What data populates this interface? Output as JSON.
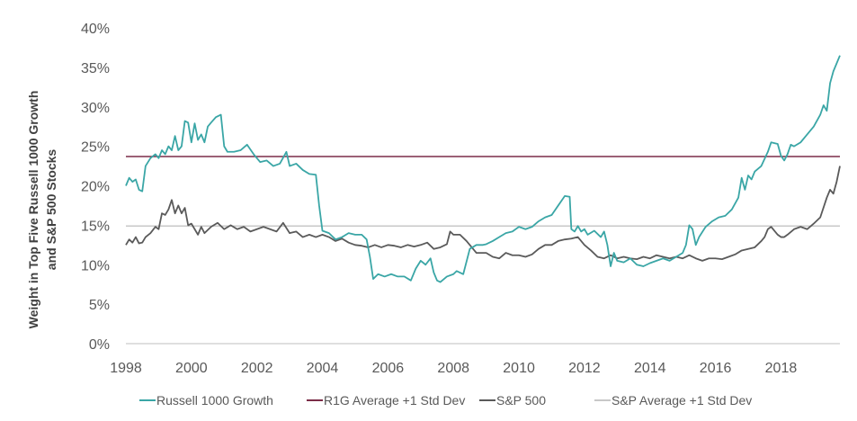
{
  "chart_data": {
    "type": "line",
    "title": "",
    "xlabel": "",
    "ylabel_lines": [
      "Weight in Top Five Russell 1000 Growth",
      "and S&P 500 Stocks"
    ],
    "xlim": [
      1998,
      2019.8
    ],
    "ylim": [
      0,
      40
    ],
    "x_ticks": [
      1998,
      2000,
      2002,
      2004,
      2006,
      2008,
      2010,
      2012,
      2014,
      2016,
      2018
    ],
    "x_tick_labels": [
      "1998",
      "2000",
      "2002",
      "2004",
      "2006",
      "2008",
      "2010",
      "2012",
      "2014",
      "2016",
      "2018"
    ],
    "y_ticks": [
      0,
      5,
      10,
      15,
      20,
      25,
      30,
      35,
      40
    ],
    "y_tick_labels": [
      "0%",
      "5%",
      "10%",
      "15%",
      "20%",
      "25%",
      "30%",
      "35%",
      "40%"
    ],
    "grid": false,
    "legend_position": "bottom",
    "series": [
      {
        "name": "Russell 1000 Growth",
        "color": "#3aa6a6",
        "points": [
          [
            1998.0,
            20.0
          ],
          [
            1998.1,
            21.0
          ],
          [
            1998.2,
            20.5
          ],
          [
            1998.3,
            20.8
          ],
          [
            1998.4,
            19.5
          ],
          [
            1998.5,
            19.3
          ],
          [
            1998.6,
            22.5
          ],
          [
            1998.75,
            23.5
          ],
          [
            1998.9,
            24.0
          ],
          [
            1999.0,
            23.5
          ],
          [
            1999.1,
            24.5
          ],
          [
            1999.2,
            24.0
          ],
          [
            1999.3,
            25.0
          ],
          [
            1999.4,
            24.5
          ],
          [
            1999.5,
            26.3
          ],
          [
            1999.6,
            24.5
          ],
          [
            1999.7,
            25.0
          ],
          [
            1999.8,
            28.2
          ],
          [
            1999.9,
            28.0
          ],
          [
            2000.0,
            25.5
          ],
          [
            2000.1,
            27.9
          ],
          [
            2000.2,
            25.8
          ],
          [
            2000.3,
            26.5
          ],
          [
            2000.4,
            25.5
          ],
          [
            2000.5,
            27.5
          ],
          [
            2000.6,
            28.0
          ],
          [
            2000.75,
            28.7
          ],
          [
            2000.9,
            29.0
          ],
          [
            2001.0,
            25.0
          ],
          [
            2001.1,
            24.3
          ],
          [
            2001.3,
            24.3
          ],
          [
            2001.5,
            24.5
          ],
          [
            2001.7,
            25.2
          ],
          [
            2001.9,
            24.0
          ],
          [
            2002.0,
            23.5
          ],
          [
            2002.1,
            23.0
          ],
          [
            2002.3,
            23.2
          ],
          [
            2002.5,
            22.5
          ],
          [
            2002.7,
            22.8
          ],
          [
            2002.9,
            24.3
          ],
          [
            2003.0,
            22.5
          ],
          [
            2003.2,
            22.8
          ],
          [
            2003.4,
            22.0
          ],
          [
            2003.6,
            21.5
          ],
          [
            2003.8,
            21.4
          ],
          [
            2003.9,
            17.5
          ],
          [
            2004.0,
            14.3
          ],
          [
            2004.2,
            14.0
          ],
          [
            2004.4,
            13.2
          ],
          [
            2004.6,
            13.5
          ],
          [
            2004.8,
            14.0
          ],
          [
            2005.0,
            13.8
          ],
          [
            2005.2,
            13.8
          ],
          [
            2005.35,
            13.2
          ],
          [
            2005.45,
            11.0
          ],
          [
            2005.55,
            8.2
          ],
          [
            2005.7,
            8.8
          ],
          [
            2005.9,
            8.5
          ],
          [
            2006.1,
            8.8
          ],
          [
            2006.3,
            8.5
          ],
          [
            2006.5,
            8.5
          ],
          [
            2006.7,
            8.0
          ],
          [
            2006.85,
            9.5
          ],
          [
            2007.0,
            10.5
          ],
          [
            2007.15,
            10.0
          ],
          [
            2007.3,
            10.8
          ],
          [
            2007.4,
            9.0
          ],
          [
            2007.5,
            8.0
          ],
          [
            2007.6,
            7.8
          ],
          [
            2007.8,
            8.5
          ],
          [
            2008.0,
            8.8
          ],
          [
            2008.1,
            9.2
          ],
          [
            2008.3,
            8.8
          ],
          [
            2008.5,
            12.0
          ],
          [
            2008.7,
            12.5
          ],
          [
            2008.9,
            12.5
          ],
          [
            2009.0,
            12.6
          ],
          [
            2009.2,
            13.0
          ],
          [
            2009.4,
            13.5
          ],
          [
            2009.6,
            14.0
          ],
          [
            2009.8,
            14.2
          ],
          [
            2010.0,
            14.8
          ],
          [
            2010.2,
            14.5
          ],
          [
            2010.4,
            14.8
          ],
          [
            2010.6,
            15.5
          ],
          [
            2010.8,
            16.0
          ],
          [
            2011.0,
            16.3
          ],
          [
            2011.2,
            17.5
          ],
          [
            2011.4,
            18.7
          ],
          [
            2011.55,
            18.6
          ],
          [
            2011.6,
            14.5
          ],
          [
            2011.7,
            14.2
          ],
          [
            2011.8,
            14.9
          ],
          [
            2011.9,
            14.2
          ],
          [
            2012.0,
            14.5
          ],
          [
            2012.1,
            13.8
          ],
          [
            2012.3,
            14.3
          ],
          [
            2012.5,
            13.5
          ],
          [
            2012.6,
            14.2
          ],
          [
            2012.7,
            12.5
          ],
          [
            2012.8,
            9.8
          ],
          [
            2012.9,
            11.5
          ],
          [
            2013.0,
            10.5
          ],
          [
            2013.2,
            10.3
          ],
          [
            2013.4,
            10.8
          ],
          [
            2013.6,
            10.0
          ],
          [
            2013.8,
            9.8
          ],
          [
            2014.0,
            10.2
          ],
          [
            2014.2,
            10.5
          ],
          [
            2014.4,
            10.8
          ],
          [
            2014.6,
            10.5
          ],
          [
            2014.8,
            11.0
          ],
          [
            2015.0,
            11.5
          ],
          [
            2015.1,
            12.5
          ],
          [
            2015.2,
            15.0
          ],
          [
            2015.3,
            14.5
          ],
          [
            2015.4,
            12.5
          ],
          [
            2015.5,
            13.5
          ],
          [
            2015.7,
            14.8
          ],
          [
            2015.9,
            15.5
          ],
          [
            2016.1,
            16.0
          ],
          [
            2016.3,
            16.2
          ],
          [
            2016.5,
            17.0
          ],
          [
            2016.7,
            18.5
          ],
          [
            2016.8,
            21.0
          ],
          [
            2016.9,
            19.5
          ],
          [
            2017.0,
            21.3
          ],
          [
            2017.1,
            20.8
          ],
          [
            2017.2,
            21.8
          ],
          [
            2017.4,
            22.5
          ],
          [
            2017.6,
            24.3
          ],
          [
            2017.7,
            25.5
          ],
          [
            2017.9,
            25.3
          ],
          [
            2018.0,
            23.8
          ],
          [
            2018.1,
            23.2
          ],
          [
            2018.2,
            24.0
          ],
          [
            2018.3,
            25.2
          ],
          [
            2018.4,
            25.0
          ],
          [
            2018.6,
            25.5
          ],
          [
            2018.8,
            26.5
          ],
          [
            2019.0,
            27.5
          ],
          [
            2019.2,
            29.0
          ],
          [
            2019.3,
            30.2
          ],
          [
            2019.4,
            29.5
          ],
          [
            2019.5,
            33.0
          ],
          [
            2019.6,
            34.5
          ],
          [
            2019.7,
            35.5
          ],
          [
            2019.8,
            36.5
          ]
        ]
      },
      {
        "name": "R1G Average +1 Std Dev",
        "color": "#7b2d48",
        "points": [
          [
            1998.0,
            23.7
          ],
          [
            2019.8,
            23.7
          ]
        ]
      },
      {
        "name": "S&P 500",
        "color": "#5a5a5a",
        "points": [
          [
            1998.0,
            12.5
          ],
          [
            1998.1,
            13.2
          ],
          [
            1998.2,
            12.8
          ],
          [
            1998.3,
            13.5
          ],
          [
            1998.4,
            12.7
          ],
          [
            1998.5,
            12.8
          ],
          [
            1998.6,
            13.5
          ],
          [
            1998.75,
            14.0
          ],
          [
            1998.9,
            14.8
          ],
          [
            1999.0,
            14.5
          ],
          [
            1999.1,
            16.5
          ],
          [
            1999.2,
            16.3
          ],
          [
            1999.3,
            17.0
          ],
          [
            1999.4,
            18.2
          ],
          [
            1999.5,
            16.5
          ],
          [
            1999.6,
            17.5
          ],
          [
            1999.7,
            16.5
          ],
          [
            1999.8,
            17.2
          ],
          [
            1999.9,
            15.0
          ],
          [
            2000.0,
            15.2
          ],
          [
            2000.1,
            14.5
          ],
          [
            2000.2,
            13.8
          ],
          [
            2000.3,
            14.8
          ],
          [
            2000.4,
            14.0
          ],
          [
            2000.6,
            14.8
          ],
          [
            2000.8,
            15.3
          ],
          [
            2001.0,
            14.5
          ],
          [
            2001.2,
            15.0
          ],
          [
            2001.4,
            14.5
          ],
          [
            2001.6,
            14.8
          ],
          [
            2001.8,
            14.2
          ],
          [
            2002.0,
            14.5
          ],
          [
            2002.2,
            14.8
          ],
          [
            2002.4,
            14.5
          ],
          [
            2002.6,
            14.2
          ],
          [
            2002.8,
            15.3
          ],
          [
            2003.0,
            14.0
          ],
          [
            2003.2,
            14.2
          ],
          [
            2003.4,
            13.5
          ],
          [
            2003.6,
            13.8
          ],
          [
            2003.8,
            13.5
          ],
          [
            2004.0,
            13.8
          ],
          [
            2004.2,
            13.5
          ],
          [
            2004.4,
            13.0
          ],
          [
            2004.6,
            13.3
          ],
          [
            2004.8,
            12.8
          ],
          [
            2005.0,
            12.5
          ],
          [
            2005.2,
            12.4
          ],
          [
            2005.4,
            12.2
          ],
          [
            2005.6,
            12.5
          ],
          [
            2005.8,
            12.2
          ],
          [
            2006.0,
            12.5
          ],
          [
            2006.2,
            12.4
          ],
          [
            2006.4,
            12.2
          ],
          [
            2006.6,
            12.5
          ],
          [
            2006.8,
            12.3
          ],
          [
            2007.0,
            12.5
          ],
          [
            2007.2,
            12.8
          ],
          [
            2007.4,
            12.0
          ],
          [
            2007.6,
            12.2
          ],
          [
            2007.8,
            12.6
          ],
          [
            2007.9,
            14.2
          ],
          [
            2008.0,
            13.8
          ],
          [
            2008.2,
            13.8
          ],
          [
            2008.4,
            13.0
          ],
          [
            2008.5,
            12.5
          ],
          [
            2008.7,
            11.5
          ],
          [
            2008.9,
            11.5
          ],
          [
            2009.0,
            11.5
          ],
          [
            2009.2,
            11.0
          ],
          [
            2009.4,
            10.8
          ],
          [
            2009.6,
            11.5
          ],
          [
            2009.8,
            11.2
          ],
          [
            2010.0,
            11.2
          ],
          [
            2010.2,
            11.0
          ],
          [
            2010.4,
            11.3
          ],
          [
            2010.6,
            12.0
          ],
          [
            2010.8,
            12.5
          ],
          [
            2011.0,
            12.5
          ],
          [
            2011.2,
            13.0
          ],
          [
            2011.4,
            13.2
          ],
          [
            2011.6,
            13.3
          ],
          [
            2011.8,
            13.5
          ],
          [
            2011.9,
            13.0
          ],
          [
            2012.0,
            12.5
          ],
          [
            2012.2,
            11.8
          ],
          [
            2012.4,
            11.0
          ],
          [
            2012.6,
            10.8
          ],
          [
            2012.8,
            11.2
          ],
          [
            2013.0,
            10.8
          ],
          [
            2013.2,
            11.0
          ],
          [
            2013.4,
            10.8
          ],
          [
            2013.6,
            10.7
          ],
          [
            2013.8,
            11.0
          ],
          [
            2014.0,
            10.8
          ],
          [
            2014.2,
            11.2
          ],
          [
            2014.4,
            11.0
          ],
          [
            2014.6,
            10.8
          ],
          [
            2014.8,
            11.0
          ],
          [
            2015.0,
            10.8
          ],
          [
            2015.2,
            11.2
          ],
          [
            2015.4,
            10.8
          ],
          [
            2015.6,
            10.5
          ],
          [
            2015.8,
            10.8
          ],
          [
            2016.0,
            10.8
          ],
          [
            2016.2,
            10.7
          ],
          [
            2016.4,
            11.0
          ],
          [
            2016.6,
            11.3
          ],
          [
            2016.8,
            11.8
          ],
          [
            2017.0,
            12.0
          ],
          [
            2017.2,
            12.2
          ],
          [
            2017.4,
            13.0
          ],
          [
            2017.5,
            13.5
          ],
          [
            2017.6,
            14.5
          ],
          [
            2017.7,
            14.8
          ],
          [
            2017.8,
            14.3
          ],
          [
            2017.9,
            13.8
          ],
          [
            2018.0,
            13.5
          ],
          [
            2018.1,
            13.5
          ],
          [
            2018.2,
            13.8
          ],
          [
            2018.4,
            14.5
          ],
          [
            2018.6,
            14.8
          ],
          [
            2018.8,
            14.5
          ],
          [
            2019.0,
            15.2
          ],
          [
            2019.2,
            16.0
          ],
          [
            2019.4,
            18.5
          ],
          [
            2019.5,
            19.5
          ],
          [
            2019.6,
            19.0
          ],
          [
            2019.7,
            20.5
          ],
          [
            2019.8,
            22.5
          ]
        ]
      },
      {
        "name": "S&P Average +1 Std Dev",
        "color": "#c8c8c8",
        "points": [
          [
            1998.0,
            14.9
          ],
          [
            2019.8,
            14.9
          ]
        ]
      }
    ]
  }
}
